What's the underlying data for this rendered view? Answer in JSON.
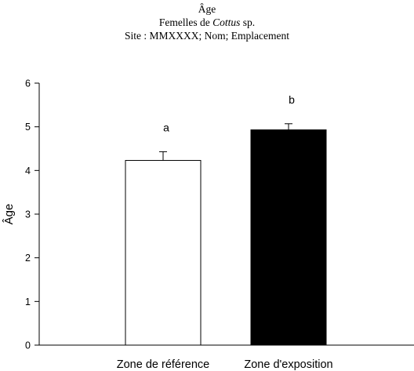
{
  "title": {
    "line1": "Âge",
    "line2_prefix": "Femelles de ",
    "line2_italic": "Cottus",
    "line2_suffix": " sp.",
    "line3": "Site : MMXXXX; Nom; Emplacement"
  },
  "chart_data": {
    "type": "bar",
    "ylabel": "Âge",
    "xlabel": "",
    "ylim": [
      0,
      6
    ],
    "yticks": [
      "0",
      "1",
      "2",
      "3",
      "4",
      "5",
      "6"
    ],
    "categories": [
      "Zone de référence",
      "Zone d'exposition"
    ],
    "values": [
      4.23,
      4.93
    ],
    "error_upper": [
      0.2,
      0.14
    ],
    "significance_labels": [
      "a",
      "b"
    ],
    "bar_colors": [
      "#ffffff",
      "#000000"
    ],
    "grid": false
  }
}
